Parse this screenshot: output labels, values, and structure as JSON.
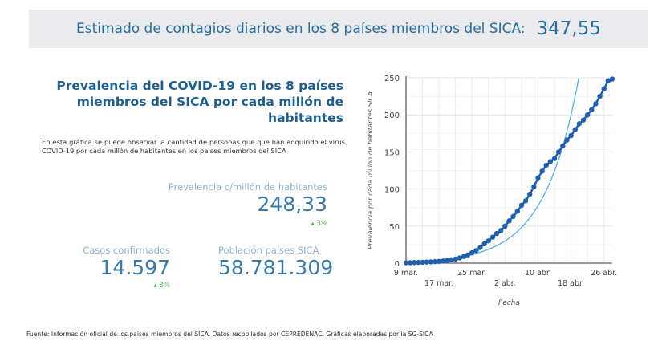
{
  "banner": {
    "label": "Estimado de contagios diarios en los 8 países miembros del SICA:",
    "value": "347,55"
  },
  "title": "Prevalencia del COVID-19 en los 8 países miembros del SICA por cada millón de habitantes",
  "description": "En esta gráfica se puede observar la cantidad de personas que que han adquirido el virus COVID-19 por cada millón de habitantes en los paises miembros del SICA",
  "kpis": {
    "prevalence": {
      "label": "Prevalencia c/millón de habitantes",
      "value": "248,33",
      "delta": "3%"
    },
    "cases": {
      "label": "Casos confirmados",
      "value": "14.597",
      "delta": "3%"
    },
    "population": {
      "label": "Población países SICA",
      "value": "58.781.309"
    }
  },
  "footer": "Fuente: Información oficial de los paises miembros del SICA. Datos recopilados por CEPREDENAC. Gráficas elaboradas por la SG-SICA",
  "colors": {
    "series": "#1f5fae",
    "trendline": "#5aaee0",
    "delta": "#4caf50"
  },
  "chart_data": {
    "type": "line",
    "xlabel": "Fecha",
    "ylabel": "Prevalencia por cada millon de habitantes SICA",
    "ylim": [
      0,
      250
    ],
    "yticks": [
      "0",
      "50",
      "100",
      "150",
      "200",
      "250"
    ],
    "xticks": [
      "9 mar.",
      "17 mar.",
      "25 mar.",
      "2 abr.",
      "10 abr.",
      "18 abr.",
      "26 abr."
    ],
    "x_start": "9 mar.",
    "x_step": "1 día",
    "grid": true,
    "trendline": "exponential",
    "values": [
      0.5,
      0.6,
      0.8,
      1,
      1.2,
      1.4,
      1.7,
      2,
      2.4,
      2.9,
      3.5,
      4.5,
      5.5,
      7,
      9,
      11,
      14,
      17,
      21,
      26,
      30,
      35,
      40,
      44,
      50,
      57,
      63,
      70,
      78,
      84,
      93,
      103,
      115,
      124,
      132,
      137,
      141,
      150,
      158,
      166,
      172,
      180,
      188,
      193,
      200,
      207,
      215,
      225,
      235,
      246,
      248.33
    ]
  }
}
